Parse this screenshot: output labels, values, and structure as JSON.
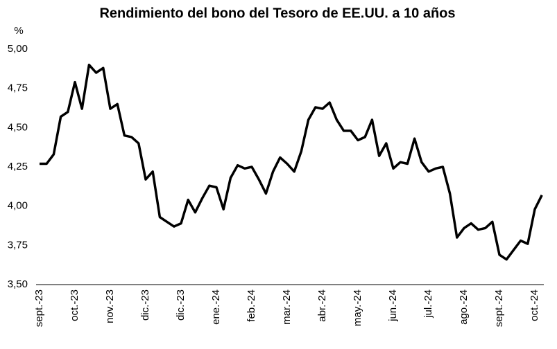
{
  "chart_data": {
    "type": "line",
    "title": "Rendimiento del bono del Tesoro de EE.UU. a 10 años",
    "ylabel": "%",
    "categories": [
      "sept.-23",
      null,
      null,
      null,
      null,
      "oct.-23",
      null,
      null,
      null,
      null,
      "nov.-23",
      null,
      null,
      null,
      null,
      "dic.-23",
      null,
      null,
      null,
      null,
      "dic.-23",
      null,
      null,
      null,
      null,
      "ene.-24",
      null,
      null,
      null,
      null,
      "feb.-24",
      null,
      null,
      null,
      null,
      "mar.-24",
      null,
      null,
      null,
      null,
      "abr.-24",
      null,
      null,
      null,
      null,
      "may.-24",
      null,
      null,
      null,
      null,
      "jun.-24",
      null,
      null,
      null,
      null,
      "jul.-24",
      null,
      null,
      null,
      null,
      "ago.-24",
      null,
      null,
      null,
      null,
      "sept.-24",
      null,
      null,
      null,
      null,
      "oct.-24",
      null
    ],
    "series": [
      {
        "name": null,
        "color": "#000000",
        "values": [
          4.27,
          4.27,
          4.33,
          4.57,
          4.6,
          4.79,
          4.62,
          4.9,
          4.85,
          4.88,
          4.62,
          4.65,
          4.45,
          4.44,
          4.4,
          4.17,
          4.22,
          3.93,
          3.9,
          3.87,
          3.89,
          4.04,
          3.96,
          4.05,
          4.13,
          4.12,
          3.98,
          4.18,
          4.26,
          4.24,
          4.25,
          4.17,
          4.08,
          4.22,
          4.31,
          4.27,
          4.22,
          4.35,
          4.55,
          4.63,
          4.62,
          4.66,
          4.55,
          4.48,
          4.48,
          4.42,
          4.44,
          4.55,
          4.32,
          4.4,
          4.24,
          4.28,
          4.27,
          4.43,
          4.28,
          4.22,
          4.24,
          4.25,
          4.08,
          3.8,
          3.86,
          3.89,
          3.85,
          3.86,
          3.9,
          3.69,
          3.66,
          3.72,
          3.78,
          3.76,
          3.98,
          4.07
        ]
      }
    ],
    "ylim": [
      3.5,
      5.0
    ],
    "yticks": [
      {
        "value": 3.5,
        "label": "3,50"
      },
      {
        "value": 3.75,
        "label": "3,75"
      },
      {
        "value": 4.0,
        "label": "4,00"
      },
      {
        "value": 4.25,
        "label": "4,25"
      },
      {
        "value": 4.5,
        "label": "4,50"
      },
      {
        "value": 4.75,
        "label": "4,75"
      },
      {
        "value": 5.0,
        "label": "5,00"
      }
    ],
    "grid": false
  }
}
